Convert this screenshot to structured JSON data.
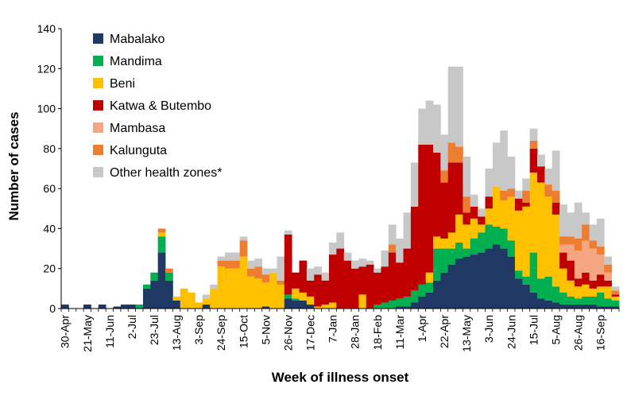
{
  "chart_data": {
    "type": "bar",
    "stacked": true,
    "title": "",
    "xlabel": "Week of illness onset",
    "ylabel": "Number of cases",
    "ylim": [
      0,
      140
    ],
    "yticks": [
      0,
      20,
      40,
      60,
      80,
      100,
      120,
      140
    ],
    "legend_position": "top-left",
    "grid": false,
    "x_tick_labels": [
      {
        "week": 1,
        "label": "30-Apr"
      },
      {
        "week": 4,
        "label": "21-May"
      },
      {
        "week": 7,
        "label": "11-Jun"
      },
      {
        "week": 10,
        "label": "2-Jul"
      },
      {
        "week": 13,
        "label": "23-Jul"
      },
      {
        "week": 16,
        "label": "13-Aug"
      },
      {
        "week": 19,
        "label": "3-Sep"
      },
      {
        "week": 22,
        "label": "24-Sep"
      },
      {
        "week": 25,
        "label": "15-Oct"
      },
      {
        "week": 28,
        "label": "5-Nov"
      },
      {
        "week": 31,
        "label": "26-Nov"
      },
      {
        "week": 34,
        "label": "17-Dec"
      },
      {
        "week": 37,
        "label": "7-Jan"
      },
      {
        "week": 40,
        "label": "28-Jan"
      },
      {
        "week": 43,
        "label": "18-Feb"
      },
      {
        "week": 46,
        "label": "11-Mar"
      },
      {
        "week": 49,
        "label": "1-Apr"
      },
      {
        "week": 52,
        "label": "22-Apr"
      },
      {
        "week": 55,
        "label": "13-May"
      },
      {
        "week": 58,
        "label": "3-Jun"
      },
      {
        "week": 61,
        "label": "24-Jun"
      },
      {
        "week": 64,
        "label": "15-Jul"
      },
      {
        "week": 67,
        "label": "5-Aug"
      },
      {
        "week": 70,
        "label": "26-Aug"
      },
      {
        "week": 73,
        "label": "16-Sep"
      }
    ],
    "num_weeks": 75,
    "series": [
      {
        "name": "Mabalako",
        "color": "#1F3864",
        "values": [
          2,
          0,
          0,
          2,
          0,
          2,
          0,
          1,
          2,
          2,
          0,
          10,
          14,
          28,
          14,
          4,
          0,
          0,
          0,
          2,
          0,
          0,
          0,
          0,
          0,
          0,
          0,
          1,
          0,
          0,
          5,
          4,
          4,
          2,
          0,
          0,
          0,
          0,
          0,
          0,
          0,
          0,
          0,
          0,
          0,
          1,
          1,
          3,
          6,
          8,
          14,
          18,
          22,
          25,
          26,
          27,
          28,
          30,
          32,
          30,
          26,
          15,
          12,
          8,
          5,
          4,
          3,
          2,
          2,
          2,
          2,
          2,
          1,
          1,
          1
        ]
      },
      {
        "name": "Mandima",
        "color": "#00B050",
        "values": [
          0,
          0,
          0,
          0,
          0,
          0,
          0,
          0,
          0,
          0,
          2,
          2,
          4,
          8,
          4,
          0,
          0,
          0,
          0,
          0,
          0,
          0,
          0,
          0,
          0,
          0,
          0,
          0,
          0,
          0,
          2,
          1,
          0,
          0,
          0,
          0,
          0,
          0,
          0,
          0,
          0,
          0,
          2,
          3,
          4,
          4,
          5,
          6,
          6,
          5,
          16,
          12,
          8,
          8,
          4,
          8,
          10,
          12,
          9,
          10,
          8,
          4,
          4,
          20,
          10,
          12,
          8,
          6,
          4,
          3,
          4,
          4,
          7,
          4,
          3
        ]
      },
      {
        "name": "Beni",
        "color": "#FFC000",
        "values": [
          0,
          0,
          0,
          0,
          0,
          0,
          0,
          0,
          0,
          0,
          0,
          0,
          0,
          2,
          0,
          2,
          10,
          8,
          3,
          3,
          10,
          21,
          20,
          20,
          26,
          16,
          15,
          12,
          18,
          12,
          0,
          5,
          4,
          4,
          1,
          2,
          3,
          0,
          0,
          0,
          7,
          0,
          0,
          0,
          0,
          0,
          0,
          0,
          0,
          5,
          6,
          5,
          8,
          14,
          12,
          10,
          4,
          8,
          20,
          14,
          22,
          30,
          35,
          40,
          48,
          40,
          36,
          12,
          8,
          6,
          6,
          4,
          3,
          6,
          2
        ]
      },
      {
        "name": "Katwa & Butembo",
        "color": "#C00000",
        "values": [
          0,
          0,
          0,
          0,
          0,
          0,
          0,
          0,
          0,
          0,
          0,
          0,
          0,
          0,
          0,
          0,
          0,
          0,
          0,
          0,
          0,
          0,
          0,
          0,
          0,
          0,
          0,
          0,
          0,
          0,
          30,
          8,
          16,
          8,
          16,
          12,
          24,
          30,
          24,
          20,
          14,
          22,
          16,
          18,
          24,
          18,
          24,
          42,
          70,
          64,
          42,
          28,
          35,
          26,
          6,
          6,
          4,
          6,
          0,
          0,
          0,
          6,
          2,
          12,
          8,
          0,
          6,
          8,
          10,
          4,
          6,
          4,
          6,
          3,
          1
        ]
      },
      {
        "name": "Mambasa",
        "color": "#F4A582",
        "values": [
          0,
          0,
          0,
          0,
          0,
          0,
          0,
          0,
          0,
          0,
          0,
          0,
          0,
          0,
          0,
          0,
          0,
          0,
          0,
          0,
          0,
          0,
          0,
          0,
          0,
          0,
          0,
          0,
          0,
          0,
          0,
          0,
          0,
          0,
          0,
          0,
          0,
          0,
          0,
          0,
          0,
          0,
          0,
          0,
          0,
          0,
          0,
          0,
          0,
          0,
          0,
          0,
          0,
          0,
          0,
          0,
          0,
          0,
          0,
          0,
          0,
          0,
          0,
          0,
          0,
          0,
          0,
          4,
          8,
          14,
          16,
          16,
          10,
          4,
          0
        ]
      },
      {
        "name": "Kalunguta",
        "color": "#ED7D31",
        "values": [
          0,
          0,
          0,
          0,
          0,
          0,
          0,
          0,
          0,
          0,
          0,
          0,
          0,
          2,
          2,
          0,
          0,
          0,
          0,
          0,
          0,
          3,
          4,
          4,
          8,
          4,
          6,
          4,
          0,
          2,
          0,
          0,
          0,
          0,
          0,
          0,
          0,
          0,
          0,
          0,
          0,
          0,
          0,
          0,
          4,
          0,
          0,
          0,
          0,
          0,
          0,
          6,
          10,
          8,
          8,
          0,
          0,
          0,
          0,
          5,
          4,
          0,
          6,
          4,
          0,
          6,
          6,
          4,
          4,
          6,
          8,
          4,
          4,
          4,
          2
        ]
      },
      {
        "name": "Other health zones*",
        "color": "#C8C8C8",
        "values": [
          0,
          0,
          0,
          0,
          0,
          0,
          0,
          0,
          0,
          0,
          0,
          0,
          0,
          0,
          0,
          0,
          0,
          0,
          0,
          2,
          2,
          2,
          4,
          4,
          2,
          4,
          4,
          3,
          2,
          12,
          2,
          0,
          0,
          6,
          4,
          4,
          6,
          8,
          4,
          4,
          4,
          2,
          2,
          8,
          10,
          12,
          18,
          22,
          18,
          22,
          24,
          18,
          38,
          40,
          20,
          6,
          4,
          14,
          22,
          30,
          16,
          4,
          6,
          6,
          6,
          8,
          20,
          16,
          12,
          18,
          6,
          8,
          14,
          4,
          2
        ]
      }
    ]
  }
}
